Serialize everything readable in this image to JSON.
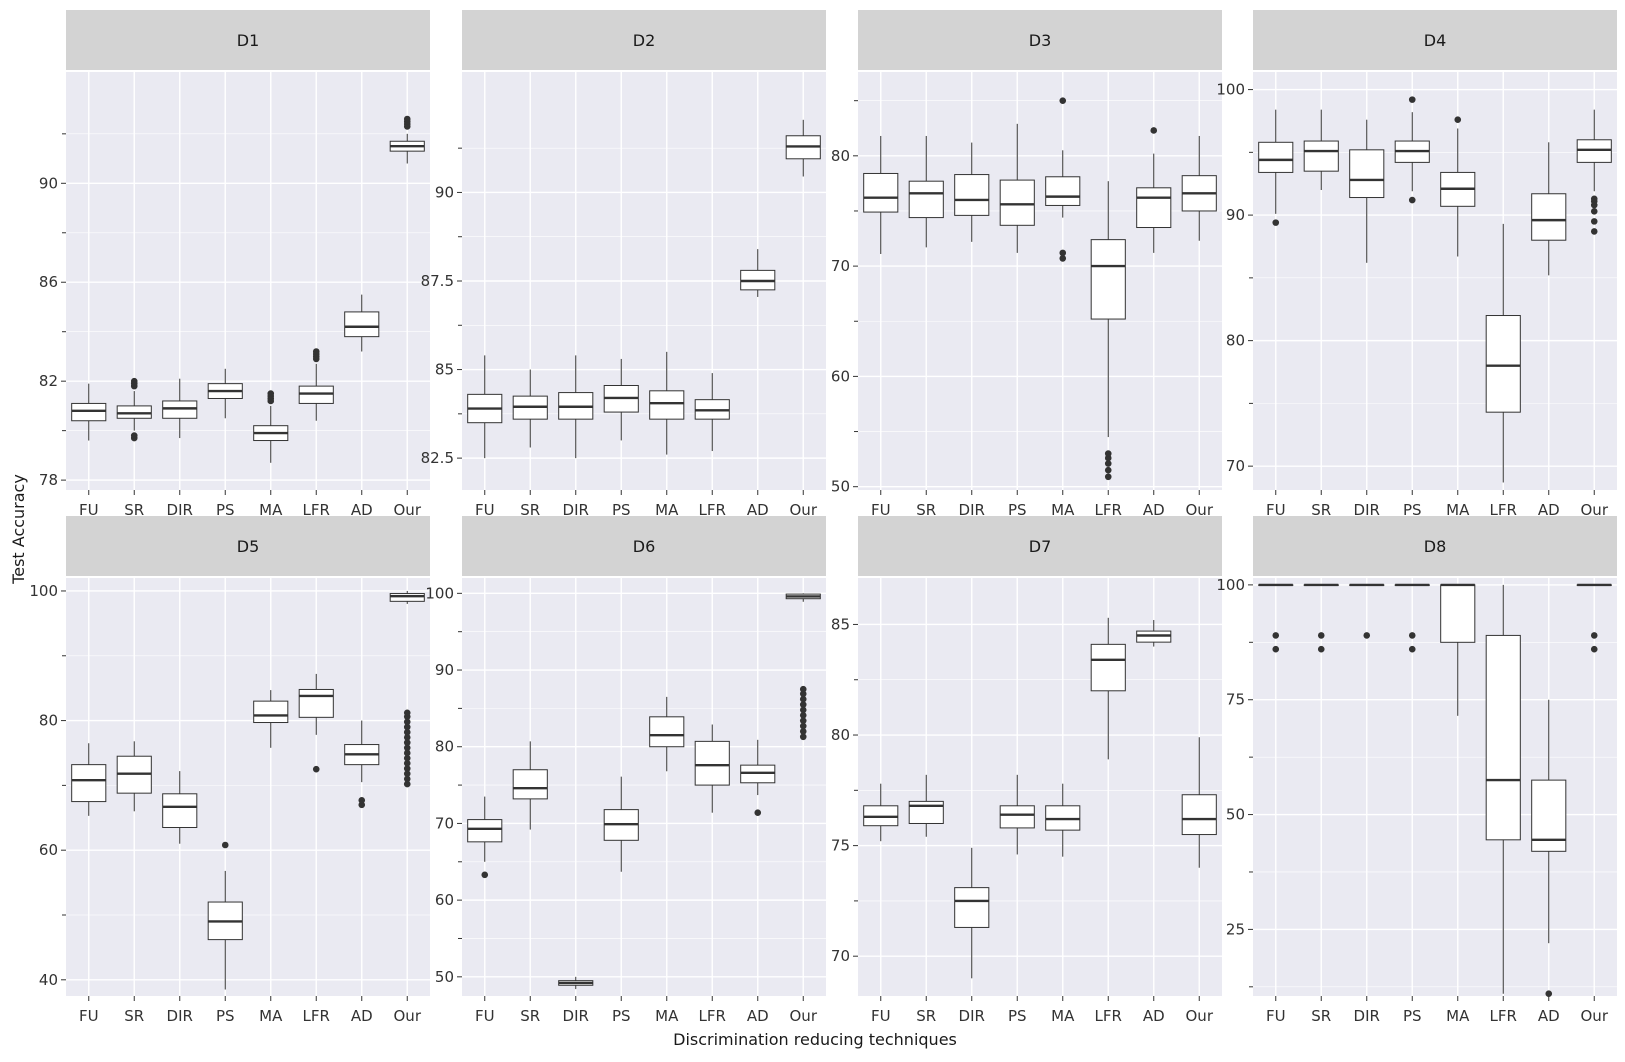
{
  "chart_data": {
    "type": "box",
    "xlabel": "Discrimination reducing techniques",
    "ylabel": "Test Accuracy",
    "categories": [
      "FU",
      "SR",
      "DIR",
      "PS",
      "MA",
      "LFR",
      "AD",
      "Our"
    ],
    "colors": {
      "panel_bg": "#EAEAF2",
      "strip_bg": "#D3D3D3",
      "grid": "#FFFFFF",
      "box_fill": "#FFFFFF",
      "box_stroke": "#333333",
      "outlier": "#333333"
    },
    "panels": [
      {
        "title": "D1",
        "ylim": [
          77.6,
          94.5
        ],
        "yticks": [
          78,
          82,
          86,
          90
        ],
        "minor_yticks": [
          80,
          84,
          88,
          92
        ],
        "boxes": [
          {
            "q1": 80.4,
            "median": 80.8,
            "q3": 81.1,
            "min": 79.6,
            "max": 81.9,
            "outliers": []
          },
          {
            "q1": 80.5,
            "median": 80.7,
            "q3": 81.0,
            "min": 80.0,
            "max": 81.6,
            "outliers": [
              79.7,
              79.8,
              81.8,
              81.9,
              82.0
            ]
          },
          {
            "q1": 80.5,
            "median": 80.9,
            "q3": 81.2,
            "min": 79.7,
            "max": 82.1,
            "outliers": []
          },
          {
            "q1": 81.3,
            "median": 81.6,
            "q3": 81.9,
            "min": 80.5,
            "max": 82.5,
            "outliers": []
          },
          {
            "q1": 79.6,
            "median": 79.9,
            "q3": 80.2,
            "min": 78.7,
            "max": 81.0,
            "outliers": [
              81.2,
              81.3,
              81.4,
              81.5
            ]
          },
          {
            "q1": 81.1,
            "median": 81.5,
            "q3": 81.8,
            "min": 80.4,
            "max": 82.7,
            "outliers": [
              82.9,
              83.0,
              83.1,
              83.2
            ]
          },
          {
            "q1": 83.8,
            "median": 84.2,
            "q3": 84.8,
            "min": 83.2,
            "max": 85.5,
            "outliers": []
          },
          {
            "q1": 91.3,
            "median": 91.5,
            "q3": 91.7,
            "min": 90.8,
            "max": 92.0,
            "outliers": [
              92.3,
              92.4,
              92.5,
              92.6
            ]
          }
        ]
      },
      {
        "title": "D2",
        "ylim": [
          81.6,
          93.4
        ],
        "yticks": [
          82.5,
          85,
          87.5,
          90
        ],
        "minor_yticks": [
          83.75,
          86.25,
          88.75,
          91.25
        ],
        "boxes": [
          {
            "q1": 83.5,
            "median": 83.9,
            "q3": 84.3,
            "min": 82.5,
            "max": 85.4,
            "outliers": []
          },
          {
            "q1": 83.6,
            "median": 83.95,
            "q3": 84.25,
            "min": 82.8,
            "max": 85.0,
            "outliers": []
          },
          {
            "q1": 83.6,
            "median": 83.95,
            "q3": 84.35,
            "min": 82.5,
            "max": 85.4,
            "outliers": []
          },
          {
            "q1": 83.8,
            "median": 84.2,
            "q3": 84.55,
            "min": 83.0,
            "max": 85.3,
            "outliers": []
          },
          {
            "q1": 83.6,
            "median": 84.05,
            "q3": 84.4,
            "min": 82.6,
            "max": 85.5,
            "outliers": []
          },
          {
            "q1": 83.6,
            "median": 83.85,
            "q3": 84.15,
            "min": 82.7,
            "max": 84.9,
            "outliers": []
          },
          {
            "q1": 87.25,
            "median": 87.5,
            "q3": 87.8,
            "min": 87.05,
            "max": 88.4,
            "outliers": []
          },
          {
            "q1": 90.95,
            "median": 91.3,
            "q3": 91.6,
            "min": 90.45,
            "max": 92.05,
            "outliers": []
          }
        ]
      },
      {
        "title": "D3",
        "ylim": [
          49.7,
          87.6
        ],
        "yticks": [
          50,
          60,
          70,
          80
        ],
        "minor_yticks": [
          55,
          65,
          75,
          85
        ],
        "boxes": [
          {
            "q1": 74.9,
            "median": 76.2,
            "q3": 78.4,
            "min": 71.1,
            "max": 81.8,
            "outliers": []
          },
          {
            "q1": 74.4,
            "median": 76.6,
            "q3": 77.7,
            "min": 71.7,
            "max": 81.8,
            "outliers": []
          },
          {
            "q1": 74.6,
            "median": 76.0,
            "q3": 78.3,
            "min": 72.2,
            "max": 81.2,
            "outliers": []
          },
          {
            "q1": 73.7,
            "median": 75.6,
            "q3": 77.8,
            "min": 71.2,
            "max": 82.9,
            "outliers": []
          },
          {
            "q1": 75.5,
            "median": 76.3,
            "q3": 78.1,
            "min": 74.4,
            "max": 80.5,
            "outliers": [
              70.7,
              71.2,
              85.0
            ]
          },
          {
            "q1": 65.2,
            "median": 70.0,
            "q3": 72.4,
            "min": 54.5,
            "max": 77.7,
            "outliers": [
              50.9,
              51.5,
              52.1,
              52.6,
              53.0
            ]
          },
          {
            "q1": 73.5,
            "median": 76.2,
            "q3": 77.1,
            "min": 71.2,
            "max": 80.2,
            "outliers": [
              82.3
            ]
          },
          {
            "q1": 75.0,
            "median": 76.6,
            "q3": 78.2,
            "min": 72.3,
            "max": 81.8,
            "outliers": []
          }
        ]
      },
      {
        "title": "D4",
        "ylim": [
          68.1,
          101.4
        ],
        "yticks": [
          70,
          80,
          90,
          100
        ],
        "minor_yticks": [
          75,
          85,
          95
        ],
        "boxes": [
          {
            "q1": 93.4,
            "median": 94.4,
            "q3": 95.8,
            "min": 90.1,
            "max": 98.4,
            "outliers": [
              89.4
            ]
          },
          {
            "q1": 93.5,
            "median": 95.1,
            "q3": 95.9,
            "min": 92.0,
            "max": 98.4,
            "outliers": []
          },
          {
            "q1": 91.4,
            "median": 92.8,
            "q3": 95.2,
            "min": 86.2,
            "max": 97.6,
            "outliers": []
          },
          {
            "q1": 94.2,
            "median": 95.1,
            "q3": 95.9,
            "min": 91.9,
            "max": 98.2,
            "outliers": [
              91.2,
              99.2
            ]
          },
          {
            "q1": 90.7,
            "median": 92.1,
            "q3": 93.4,
            "min": 86.7,
            "max": 96.9,
            "outliers": [
              97.6
            ]
          },
          {
            "q1": 74.3,
            "median": 78.0,
            "q3": 82.0,
            "min": 68.7,
            "max": 89.3,
            "outliers": []
          },
          {
            "q1": 88.0,
            "median": 89.6,
            "q3": 91.7,
            "min": 85.2,
            "max": 95.8,
            "outliers": []
          },
          {
            "q1": 94.2,
            "median": 95.2,
            "q3": 96.0,
            "min": 91.9,
            "max": 98.4,
            "outliers": [
              88.7,
              89.5,
              90.3,
              90.8,
              91.1,
              91.3
            ]
          }
        ]
      },
      {
        "title": "D5",
        "ylim": [
          37.5,
          102.0
        ],
        "yticks": [
          40,
          60,
          80,
          100
        ],
        "minor_yticks": [
          50,
          70,
          90
        ],
        "boxes": [
          {
            "q1": 67.5,
            "median": 70.8,
            "q3": 73.2,
            "min": 65.3,
            "max": 76.5,
            "outliers": []
          },
          {
            "q1": 68.8,
            "median": 71.8,
            "q3": 74.5,
            "min": 66.0,
            "max": 76.8,
            "outliers": []
          },
          {
            "q1": 63.5,
            "median": 66.7,
            "q3": 68.7,
            "min": 61.0,
            "max": 72.2,
            "outliers": []
          },
          {
            "q1": 46.2,
            "median": 49.0,
            "q3": 52.0,
            "min": 38.5,
            "max": 56.8,
            "outliers": [
              60.8
            ]
          },
          {
            "q1": 79.7,
            "median": 80.8,
            "q3": 83.0,
            "min": 75.8,
            "max": 84.7,
            "outliers": []
          },
          {
            "q1": 80.5,
            "median": 83.8,
            "q3": 84.8,
            "min": 77.8,
            "max": 87.2,
            "outliers": [
              72.5
            ]
          },
          {
            "q1": 73.2,
            "median": 74.8,
            "q3": 76.3,
            "min": 70.5,
            "max": 80.0,
            "outliers": [
              67.0,
              67.7
            ]
          },
          {
            "q1": 98.4,
            "median": 99.2,
            "q3": 99.6,
            "min": 98.0,
            "max": 100.0,
            "outliers": [
              70.2,
              71.0,
              71.8,
              72.6,
              73.4,
              74.2,
              75.0,
              75.8,
              76.6,
              77.4,
              78.2,
              79.0,
              79.8,
              80.6,
              81.2
            ]
          }
        ]
      },
      {
        "title": "D6",
        "ylim": [
          47.5,
          102.0
        ],
        "yticks": [
          50,
          60,
          70,
          80,
          90,
          100
        ],
        "minor_yticks": [
          55,
          65,
          75,
          85,
          95
        ],
        "boxes": [
          {
            "q1": 67.6,
            "median": 69.3,
            "q3": 70.5,
            "min": 65.0,
            "max": 73.5,
            "outliers": [
              63.3
            ]
          },
          {
            "q1": 73.2,
            "median": 74.6,
            "q3": 77.0,
            "min": 69.2,
            "max": 80.7,
            "outliers": []
          },
          {
            "q1": 48.9,
            "median": 49.2,
            "q3": 49.5,
            "min": 48.4,
            "max": 50.0,
            "outliers": []
          },
          {
            "q1": 67.8,
            "median": 69.9,
            "q3": 71.8,
            "min": 63.7,
            "max": 76.1,
            "outliers": []
          },
          {
            "q1": 80.0,
            "median": 81.5,
            "q3": 83.9,
            "min": 76.8,
            "max": 86.5,
            "outliers": []
          },
          {
            "q1": 75.0,
            "median": 77.6,
            "q3": 80.7,
            "min": 71.4,
            "max": 82.9,
            "outliers": []
          },
          {
            "q1": 75.3,
            "median": 76.6,
            "q3": 77.6,
            "min": 73.7,
            "max": 80.9,
            "outliers": [
              71.4
            ]
          },
          {
            "q1": 99.3,
            "median": 99.6,
            "q3": 99.9,
            "min": 98.9,
            "max": 100.0,
            "outliers": [
              81.3,
              82.0,
              82.7,
              83.4,
              84.1,
              84.8,
              85.5,
              86.2,
              86.9,
              87.5
            ]
          }
        ]
      },
      {
        "title": "D7",
        "ylim": [
          68.2,
          87.1
        ],
        "yticks": [
          70,
          75,
          80,
          85
        ],
        "minor_yticks": [
          72.5,
          77.5,
          82.5
        ],
        "boxes": [
          {
            "q1": 75.9,
            "median": 76.3,
            "q3": 76.8,
            "min": 75.2,
            "max": 77.8,
            "outliers": []
          },
          {
            "q1": 76.0,
            "median": 76.8,
            "q3": 77.0,
            "min": 75.4,
            "max": 78.2,
            "outliers": []
          },
          {
            "q1": 71.3,
            "median": 72.5,
            "q3": 73.1,
            "min": 69.0,
            "max": 74.9,
            "outliers": []
          },
          {
            "q1": 75.8,
            "median": 76.4,
            "q3": 76.8,
            "min": 74.6,
            "max": 78.2,
            "outliers": []
          },
          {
            "q1": 75.7,
            "median": 76.2,
            "q3": 76.8,
            "min": 74.5,
            "max": 77.8,
            "outliers": []
          },
          {
            "q1": 82.0,
            "median": 83.4,
            "q3": 84.1,
            "min": 78.9,
            "max": 85.3,
            "outliers": []
          },
          {
            "q1": 84.2,
            "median": 84.5,
            "q3": 84.7,
            "min": 84.0,
            "max": 85.2,
            "outliers": []
          },
          {
            "q1": 75.5,
            "median": 76.2,
            "q3": 77.3,
            "min": 74.0,
            "max": 79.9,
            "outliers": []
          }
        ]
      },
      {
        "title": "D8",
        "ylim": [
          10.5,
          101.5
        ],
        "yticks": [
          25,
          50,
          75,
          100
        ],
        "minor_yticks": [
          12.5,
          37.5,
          62.5,
          87.5
        ],
        "boxes": [
          {
            "q1": 100.0,
            "median": 100.0,
            "q3": 100.0,
            "min": 100.0,
            "max": 100.0,
            "outliers": [
              86.0,
              89.0
            ]
          },
          {
            "q1": 100.0,
            "median": 100.0,
            "q3": 100.0,
            "min": 100.0,
            "max": 100.0,
            "outliers": [
              86.0,
              89.0
            ]
          },
          {
            "q1": 100.0,
            "median": 100.0,
            "q3": 100.0,
            "min": 100.0,
            "max": 100.0,
            "outliers": [
              89.0
            ]
          },
          {
            "q1": 100.0,
            "median": 100.0,
            "q3": 100.0,
            "min": 100.0,
            "max": 100.0,
            "outliers": [
              86.0,
              89.0
            ]
          },
          {
            "q1": 87.5,
            "median": 100.0,
            "q3": 100.0,
            "min": 71.5,
            "max": 100.0,
            "outliers": []
          },
          {
            "q1": 44.5,
            "median": 57.5,
            "q3": 89.0,
            "min": 11.0,
            "max": 100.0,
            "outliers": []
          },
          {
            "q1": 42.0,
            "median": 44.5,
            "q3": 57.5,
            "min": 22.0,
            "max": 75.0,
            "outliers": [
              11.0
            ]
          },
          {
            "q1": 100.0,
            "median": 100.0,
            "q3": 100.0,
            "min": 100.0,
            "max": 100.0,
            "outliers": [
              86.0,
              89.0
            ]
          }
        ]
      }
    ]
  }
}
